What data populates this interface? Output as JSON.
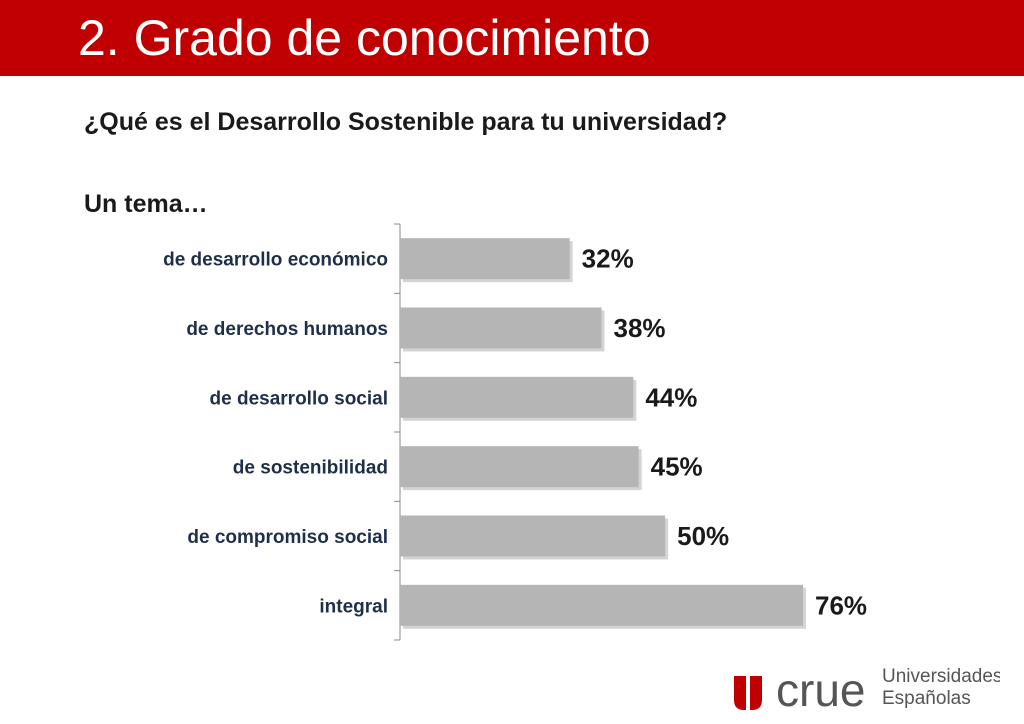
{
  "header": {
    "title": "2. Grado de conocimiento"
  },
  "question": "¿Qué es el Desarrollo Sostenible para tu universidad?",
  "lead": "Un tema…",
  "logo": {
    "brand": "crue",
    "line1": "Universidades",
    "line2": "Españolas"
  },
  "colors": {
    "header": "#c00000",
    "bar": "#b5b5b5",
    "brand": "#c00000"
  },
  "chart_data": {
    "type": "bar",
    "orientation": "horizontal",
    "title": "",
    "xlabel": "",
    "ylabel": "",
    "categories": [
      "de desarrollo económico",
      "de derechos humanos",
      "de desarrollo social",
      "de sostenibilidad",
      "de compromiso social",
      "integral"
    ],
    "values": [
      32,
      38,
      44,
      45,
      50,
      76
    ],
    "value_labels": [
      "32%",
      "38%",
      "44%",
      "45%",
      "50%",
      "76%"
    ],
    "xlim": [
      0,
      76
    ],
    "unit": "%",
    "grid": false
  }
}
